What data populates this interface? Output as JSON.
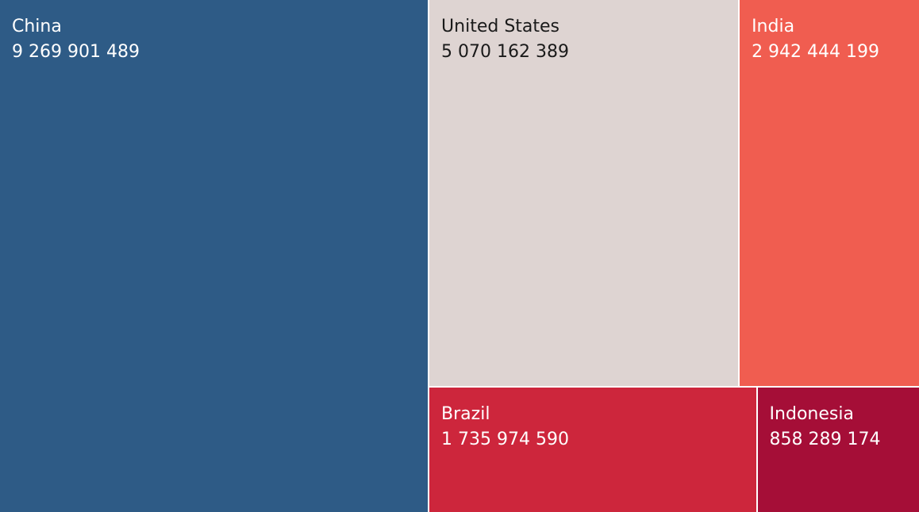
{
  "chart_data": {
    "type": "treemap",
    "title": "",
    "items": [
      {
        "name": "China",
        "label": "9 269 901 489",
        "value": 9269901489,
        "color": "#2e5b86",
        "text_color": "#ffffff"
      },
      {
        "name": "United States",
        "label": "5 070 162 389",
        "value": 5070162389,
        "color": "#ded4d2",
        "text_color": "#1a1a1a"
      },
      {
        "name": "India",
        "label": "2 942 444 199",
        "value": 2942444199,
        "color": "#f05d50",
        "text_color": "#ffffff"
      },
      {
        "name": "Brazil",
        "label": "1 735 974 590",
        "value": 1735974590,
        "color": "#cd263c",
        "text_color": "#ffffff"
      },
      {
        "name": "Indonesia",
        "label": "858 289 174",
        "value": 858289174,
        "color": "#a50e37",
        "text_color": "#ffffff"
      }
    ]
  }
}
